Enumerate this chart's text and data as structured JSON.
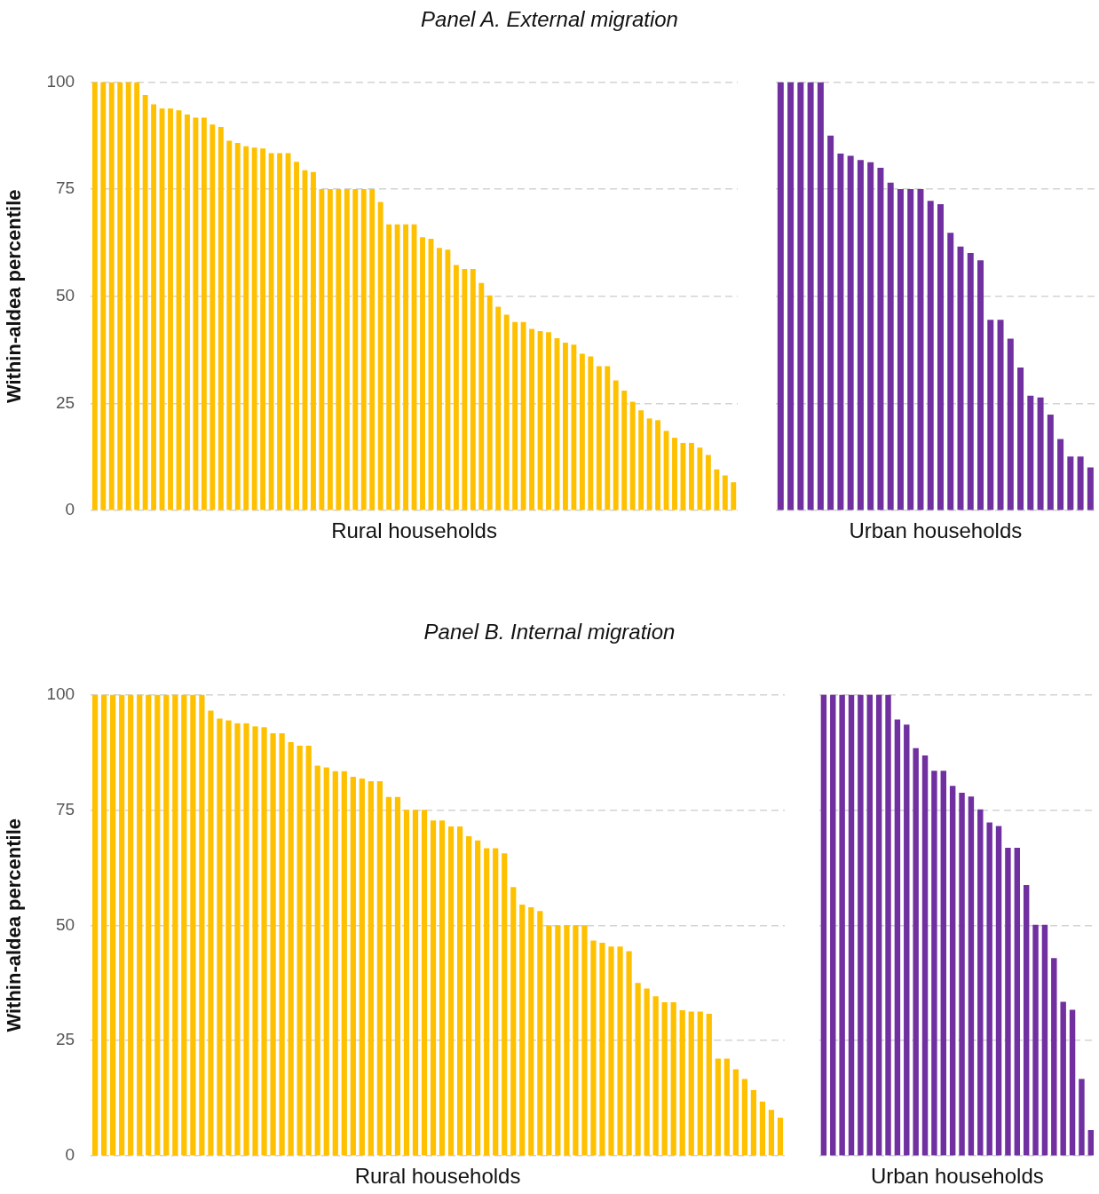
{
  "chart_data": [
    {
      "type": "bar",
      "title": "Panel A. External migration",
      "xlabel": "Rural households",
      "ylabel": "Within-aldea percentile",
      "color": "#ffc000",
      "ylim": [
        0,
        100
      ],
      "yticks": [
        0,
        25,
        50,
        75,
        100
      ],
      "grid": "y",
      "tick_labels": "y",
      "categories": [
        null,
        null,
        null,
        null,
        null,
        null,
        null,
        null,
        null,
        null,
        null,
        null,
        null,
        null,
        null,
        null,
        null,
        null,
        null,
        null,
        null,
        null,
        null,
        null,
        null,
        null,
        null,
        null,
        null,
        null,
        null,
        null,
        null,
        null,
        null,
        null,
        null,
        null,
        null,
        null,
        null,
        null,
        null,
        null,
        null,
        null,
        null,
        null,
        null,
        null,
        null,
        null,
        null,
        null,
        null,
        null,
        null,
        null,
        null,
        null,
        null,
        null,
        null,
        null,
        null,
        null,
        null,
        null,
        null,
        null,
        null,
        null,
        null,
        null,
        null,
        null,
        null
      ],
      "values": [
        100,
        100,
        100,
        100,
        100,
        100,
        97.0,
        94.8,
        93.8,
        93.8,
        93.4,
        92.4,
        91.7,
        91.7,
        90.1,
        89.5,
        86.3,
        85.8,
        85.0,
        84.7,
        84.5,
        83.4,
        83.4,
        83.4,
        81.4,
        79.4,
        79.0,
        75,
        75,
        75,
        75,
        75,
        75,
        75,
        72.0,
        66.8,
        66.8,
        66.8,
        66.8,
        63.8,
        63.4,
        61.3,
        60.9,
        57.3,
        56.4,
        56.4,
        53.1,
        50.2,
        47.6,
        45.7,
        44.0,
        44.0,
        42.4,
        41.9,
        41.6,
        40.2,
        39.2,
        38.7,
        36.6,
        36.0,
        33.7,
        33.7,
        30.4,
        28.0,
        25.4,
        23.4,
        21.5,
        21.1,
        18.6,
        17.0,
        15.8,
        15.8,
        14.7,
        13.0,
        9.6,
        8.2,
        6.6
      ]
    },
    {
      "type": "bar",
      "xlabel": "Urban households",
      "color": "#7030a0",
      "ylim": [
        0,
        100
      ],
      "yticks": [
        0,
        25,
        50,
        75,
        100
      ],
      "grid": "y",
      "tick_labels": false,
      "categories": [
        null,
        null,
        null,
        null,
        null,
        null,
        null,
        null,
        null,
        null,
        null,
        null,
        null,
        null,
        null,
        null,
        null,
        null,
        null,
        null,
        null,
        null,
        null,
        null,
        null,
        null,
        null,
        null,
        null,
        null,
        null,
        null
      ],
      "values": [
        100,
        100,
        100,
        100,
        100,
        87.5,
        83.3,
        82.8,
        81.8,
        81.3,
        80.0,
        76.5,
        75,
        75,
        75,
        72.3,
        71.5,
        64.8,
        61.6,
        60.1,
        58.4,
        44.5,
        44.5,
        40.1,
        33.4,
        26.8,
        26.4,
        22.4,
        16.7,
        12.6,
        12.6,
        10.1
      ]
    },
    {
      "type": "bar",
      "title": "Panel B. Internal migration",
      "xlabel": "Rural households",
      "ylabel": "Within-aldea percentile",
      "color": "#ffc000",
      "ylim": [
        0,
        100
      ],
      "yticks": [
        0,
        25,
        50,
        75,
        100
      ],
      "grid": "y",
      "tick_labels": "y",
      "categories": [
        null,
        null,
        null,
        null,
        null,
        null,
        null,
        null,
        null,
        null,
        null,
        null,
        null,
        null,
        null,
        null,
        null,
        null,
        null,
        null,
        null,
        null,
        null,
        null,
        null,
        null,
        null,
        null,
        null,
        null,
        null,
        null,
        null,
        null,
        null,
        null,
        null,
        null,
        null,
        null,
        null,
        null,
        null,
        null,
        null,
        null,
        null,
        null,
        null,
        null,
        null,
        null,
        null,
        null,
        null,
        null,
        null,
        null,
        null,
        null,
        null,
        null,
        null,
        null,
        null,
        null,
        null,
        null,
        null,
        null,
        null,
        null,
        null,
        null,
        null,
        null,
        null,
        null
      ],
      "values": [
        100,
        100,
        100,
        100,
        100,
        100,
        100,
        100,
        100,
        100,
        100,
        100,
        100,
        96.5,
        94.8,
        94.4,
        93.8,
        93.8,
        93.1,
        92.9,
        91.6,
        91.6,
        89.7,
        88.9,
        88.9,
        84.6,
        84.2,
        83.4,
        83.4,
        82.2,
        81.8,
        81.2,
        81.2,
        77.8,
        77.8,
        75,
        75,
        75,
        72.7,
        72.7,
        71.4,
        71.4,
        69.3,
        68.4,
        66.7,
        66.7,
        65.6,
        58.3,
        54.5,
        53.9,
        53.1,
        50,
        50,
        50,
        50,
        50,
        46.7,
        46.2,
        45.4,
        45.4,
        44.4,
        37.5,
        36.3,
        34.6,
        33.3,
        33.3,
        31.6,
        31.3,
        31.3,
        30.8,
        21.1,
        21.1,
        18.8,
        16.7,
        14.3,
        11.8,
        10.0,
        8.3
      ]
    },
    {
      "type": "bar",
      "xlabel": "Urban households",
      "color": "#7030a0",
      "ylim": [
        0,
        100
      ],
      "yticks": [
        0,
        25,
        50,
        75,
        100
      ],
      "grid": "y",
      "tick_labels": false,
      "categories": [
        null,
        null,
        null,
        null,
        null,
        null,
        null,
        null,
        null,
        null,
        null,
        null,
        null,
        null,
        null,
        null,
        null,
        null,
        null,
        null,
        null,
        null,
        null,
        null,
        null,
        null,
        null,
        null,
        null,
        null
      ],
      "values": [
        100,
        100,
        100,
        100,
        100,
        100,
        100,
        100,
        94.6,
        93.5,
        88.4,
        86.8,
        83.5,
        83.5,
        80.2,
        78.7,
        77.9,
        75.1,
        72.3,
        71.5,
        66.8,
        66.8,
        58.7,
        50.1,
        50.1,
        42.9,
        33.4,
        31.7,
        16.7,
        5.6
      ]
    }
  ]
}
